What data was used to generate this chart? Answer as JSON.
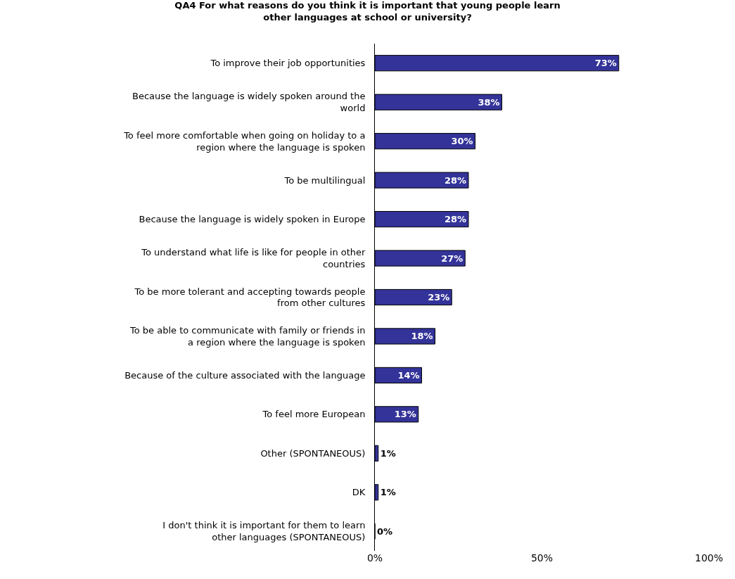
{
  "chart_data": {
    "type": "bar",
    "orientation": "horizontal",
    "title": "QA4 For what reasons do you think it is important that young people learn other languages at school or university?",
    "categories": [
      "To improve their job opportunities",
      "Because the language is widely spoken around the world",
      "To feel more comfortable when going on holiday to a region where the language is spoken",
      "To be multilingual",
      "Because the language is widely spoken in Europe",
      "To understand what life is like for people in other countries",
      "To be more tolerant and accepting towards people from other cultures",
      "To be able to communicate with family or friends in a region where the language is spoken",
      "Because of the culture associated with the language",
      "To feel more European",
      "Other (SPONTANEOUS)",
      "DK",
      "I don't think it is important for them to learn other languages (SPONTANEOUS)"
    ],
    "values": [
      73,
      38,
      30,
      28,
      28,
      27,
      23,
      18,
      14,
      13,
      1,
      1,
      0
    ],
    "value_labels": [
      "73%",
      "38%",
      "30%",
      "28%",
      "28%",
      "27%",
      "23%",
      "18%",
      "14%",
      "13%",
      "1%",
      "1%",
      "0%"
    ],
    "color": "#333399",
    "xlim": [
      0,
      100
    ],
    "xticks": [
      {
        "value": 0,
        "label": "0%"
      },
      {
        "value": 50,
        "label": "50%"
      },
      {
        "value": 100,
        "label": "100%"
      }
    ],
    "legend": false
  }
}
